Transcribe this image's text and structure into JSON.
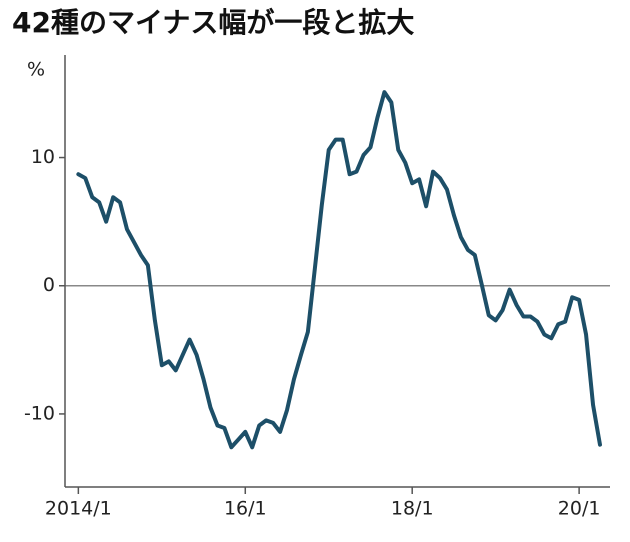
{
  "chart_data": {
    "type": "line",
    "title": "42種のマイナス幅が一段と拡大",
    "y_label": "%",
    "x": [
      2014,
      2014.083,
      2014.167,
      2014.25,
      2014.333,
      2014.417,
      2014.5,
      2014.583,
      2014.667,
      2014.75,
      2014.833,
      2014.917,
      2015,
      2015.083,
      2015.167,
      2015.25,
      2015.333,
      2015.417,
      2015.5,
      2015.583,
      2015.667,
      2015.75,
      2015.833,
      2015.917,
      2016,
      2016.083,
      2016.167,
      2016.25,
      2016.333,
      2016.417,
      2016.5,
      2016.583,
      2016.667,
      2016.75,
      2016.833,
      2016.917,
      2017,
      2017.083,
      2017.167,
      2017.25,
      2017.333,
      2017.417,
      2017.5,
      2017.583,
      2017.667,
      2017.75,
      2017.833,
      2017.917,
      2018,
      2018.083,
      2018.167,
      2018.25,
      2018.333,
      2018.417,
      2018.5,
      2018.583,
      2018.667,
      2018.75,
      2018.833,
      2018.917,
      2019,
      2019.083,
      2019.167,
      2019.25,
      2019.333,
      2019.417,
      2019.5,
      2019.583,
      2019.667,
      2019.75,
      2019.833,
      2019.917,
      2020,
      2020.083,
      2020.167,
      2020.25
    ],
    "series": [
      {
        "color": "#1d4f68",
        "values": [
          8.7,
          8.4,
          6.9,
          6.5,
          5.0,
          6.9,
          6.5,
          4.4,
          3.4,
          2.4,
          1.6,
          -2.7,
          -6.2,
          -5.9,
          -6.6,
          -5.4,
          -4.2,
          -5.4,
          -7.3,
          -9.5,
          -10.9,
          -11.1,
          -12.6,
          -12.0,
          -11.4,
          -12.6,
          -10.9,
          -10.5,
          -10.7,
          -11.4,
          -9.7,
          -7.3,
          -5.4,
          -3.6,
          1.3,
          6.3,
          10.6,
          11.4,
          11.4,
          8.7,
          8.9,
          10.2,
          10.8,
          13.1,
          15.1,
          14.3,
          10.6,
          9.6,
          8.0,
          8.3,
          6.2,
          8.9,
          8.4,
          7.5,
          5.5,
          3.8,
          2.8,
          2.4,
          0.1,
          -2.3,
          -2.7,
          -1.9,
          -0.3,
          -1.5,
          -2.4,
          -2.4,
          -2.8,
          -3.8,
          -4.1,
          -3.0,
          -2.8,
          -0.9,
          -1.1,
          -3.8,
          -9.3,
          -12.4
        ]
      }
    ],
    "xlim": [
      2013.84,
      2020.37
    ],
    "ylim": [
      -15.7,
      18
    ],
    "xticks": [
      {
        "value": 2014,
        "label": "2014/1"
      },
      {
        "value": 2016,
        "label": "16/1"
      },
      {
        "value": 2018,
        "label": "18/1"
      },
      {
        "value": 2020,
        "label": "20/1"
      }
    ],
    "yticks": [
      -10,
      0,
      10
    ],
    "hlines": [
      0
    ]
  }
}
